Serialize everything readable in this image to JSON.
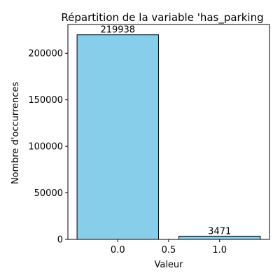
{
  "chart_data": {
    "type": "bar",
    "title": "Répartition de la variable 'has_parking",
    "xlabel": "Valeur",
    "ylabel": "Nombre d'occurrences",
    "bars": [
      {
        "x": 0.0,
        "value": 219938
      },
      {
        "x": 1.0,
        "value": 3471
      }
    ],
    "bar_width": 0.8,
    "xlim": [
      -0.49,
      1.49
    ],
    "ylim": [
      0,
      231000
    ],
    "xticks": [
      {
        "value": 0.0,
        "label": "0.0"
      },
      {
        "value": 0.5,
        "label": "0.5"
      },
      {
        "value": 1.0,
        "label": "1.0"
      }
    ],
    "yticks": [
      {
        "value": 0,
        "label": "0"
      },
      {
        "value": 50000,
        "label": "50000"
      },
      {
        "value": 100000,
        "label": "100000"
      },
      {
        "value": 150000,
        "label": "150000"
      },
      {
        "value": 200000,
        "label": "200000"
      }
    ],
    "bar_color": "#87ceeb",
    "bar_edge_color": "#000000",
    "grid": false,
    "legend": false
  }
}
